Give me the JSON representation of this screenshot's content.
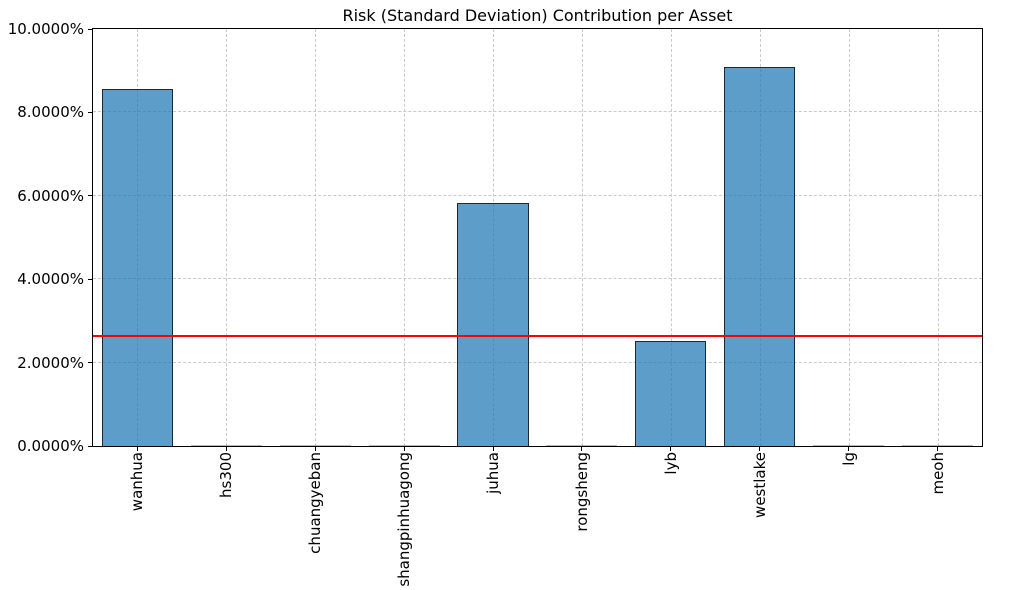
{
  "chart_data": {
    "type": "bar",
    "title": "Risk (Standard Deviation) Contribution per Asset",
    "categories": [
      "wanhua",
      "hs300",
      "chuangyeban",
      "shangpinhuagong",
      "juhua",
      "rongsheng",
      "lyb",
      "westlake",
      "lg",
      "meoh"
    ],
    "values": [
      8.56,
      0.0,
      0.0,
      0.0,
      5.82,
      0.0,
      2.53,
      9.08,
      0.0,
      0.0
    ],
    "value_unit": "percent",
    "xlabel": "",
    "ylabel": "",
    "ylim": [
      0,
      10
    ],
    "yticks": [
      0,
      2,
      4,
      6,
      8,
      10
    ],
    "ytick_labels": [
      "0.0000%",
      "2.0000%",
      "4.0000%",
      "6.0000%",
      "8.0000%",
      "10.0000%"
    ],
    "xtick_label_rotation": 90,
    "grid": "both, dashed",
    "legend": "none",
    "bar_width_fraction": 0.8,
    "hline": {
      "value": 2.61,
      "color": "#ff0000",
      "meaning": "horizontal reference line"
    },
    "colors": {
      "bar_fill": "rgba(31,119,180,0.72)",
      "bar_fill_hex_on_white": "#62a0c9",
      "bar_edge": "rgba(10,16,22,0.82)",
      "grid": "#c9c9c9",
      "hline": "#ff0000",
      "spine": "#000000",
      "text": "#000000"
    }
  }
}
